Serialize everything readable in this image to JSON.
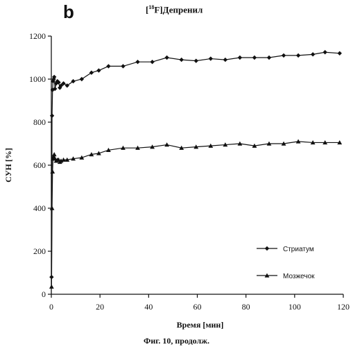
{
  "panel_label": "b",
  "title_parts": {
    "sup": "18",
    "rest": "F]Депренил",
    "open": "["
  },
  "caption": "Фиг. 10, продолж.",
  "chart_data": {
    "type": "line",
    "title": "[18F]Депренил",
    "xlabel": "Время [мин]",
    "ylabel": "СУН [%]",
    "xlim": [
      0,
      120
    ],
    "ylim": [
      0,
      1200
    ],
    "xticks": [
      0,
      20,
      40,
      60,
      80,
      100,
      120
    ],
    "yticks": [
      0,
      200,
      400,
      600,
      800,
      1000,
      1200
    ],
    "legend_position": "bottom-right",
    "series": [
      {
        "name": "Стриатум",
        "marker": "diamond",
        "color": "#111111",
        "x": [
          0.1,
          0.3,
          0.5,
          0.7,
          1.0,
          1.2,
          1.5,
          2.0,
          2.5,
          3.0,
          3.5,
          4.0,
          5.0,
          6.5,
          9.0,
          12.5,
          16.5,
          19.5,
          23.5,
          29.5,
          35.5,
          41.5,
          47.5,
          53.5,
          59.5,
          65.5,
          71.5,
          77.5,
          83.5,
          89.5,
          95.5,
          101.5,
          107.5,
          112.5,
          118.5
        ],
        "y": [
          80,
          830,
          950,
          990,
          1000,
          1010,
          955,
          980,
          990,
          985,
          960,
          970,
          980,
          970,
          990,
          1000,
          1030,
          1040,
          1060,
          1060,
          1080,
          1080,
          1100,
          1090,
          1085,
          1095,
          1090,
          1100,
          1100,
          1100,
          1110,
          1110,
          1115,
          1125,
          1120
        ]
      },
      {
        "name": "Мозжечок",
        "marker": "triangle",
        "color": "#111111",
        "x": [
          0.1,
          0.3,
          0.5,
          0.7,
          1.0,
          1.2,
          1.5,
          2.0,
          2.5,
          3.0,
          3.5,
          4.0,
          5.0,
          6.5,
          9.0,
          12.5,
          16.5,
          19.5,
          23.5,
          29.5,
          35.5,
          41.5,
          47.5,
          53.5,
          59.5,
          65.5,
          71.5,
          77.5,
          83.5,
          89.5,
          95.5,
          101.5,
          107.5,
          112.5,
          118.5
        ],
        "y": [
          35,
          400,
          570,
          630,
          640,
          650,
          630,
          620,
          625,
          625,
          615,
          620,
          625,
          625,
          630,
          635,
          650,
          655,
          670,
          680,
          680,
          685,
          695,
          680,
          685,
          690,
          695,
          700,
          690,
          700,
          700,
          710,
          705,
          705,
          705
        ]
      }
    ]
  }
}
